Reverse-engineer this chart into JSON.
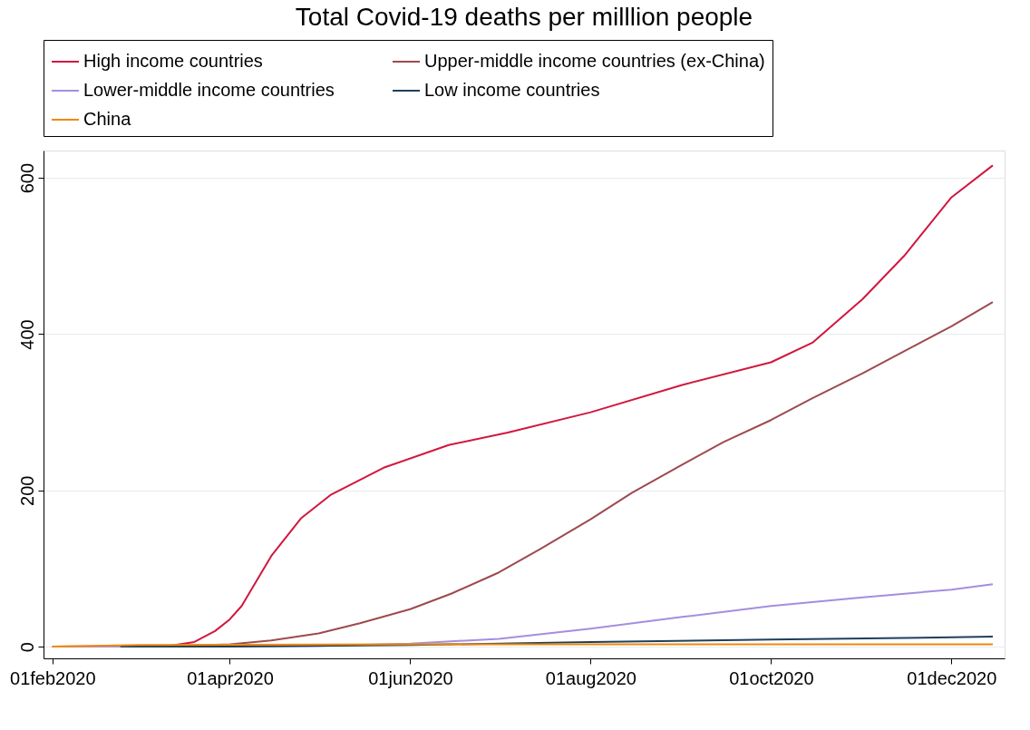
{
  "chart_data": {
    "type": "line",
    "title": "Total Covid-19 deaths per milllion people",
    "xlim": [
      "2020-01-29",
      "2020-12-19"
    ],
    "ylim": [
      -15,
      635
    ],
    "xticks": [
      {
        "value": "2020-02-01",
        "label": "01feb2020"
      },
      {
        "value": "2020-04-01",
        "label": "01apr2020"
      },
      {
        "value": "2020-06-01",
        "label": "01jun2020"
      },
      {
        "value": "2020-08-01",
        "label": "01aug2020"
      },
      {
        "value": "2020-10-01",
        "label": "01oct2020"
      },
      {
        "value": "2020-12-01",
        "label": "01dec2020"
      }
    ],
    "yticks": [
      0,
      200,
      400,
      600
    ],
    "grid": "y",
    "legend": "top",
    "marker": "none",
    "line_style": "solid",
    "series": [
      {
        "name": "High income countries",
        "color": "#d1173f",
        "x": [
          "2020-02-01",
          "2020-03-01",
          "2020-03-10",
          "2020-03-20",
          "2020-03-27",
          "2020-04-01",
          "2020-04-05",
          "2020-04-15",
          "2020-04-25",
          "2020-05-05",
          "2020-05-23",
          "2020-06-14",
          "2020-07-04",
          "2020-08-01",
          "2020-09-01",
          "2020-10-01",
          "2020-10-15",
          "2020-11-01",
          "2020-11-15",
          "2020-12-01",
          "2020-12-15"
        ],
        "values": [
          0,
          0,
          0,
          6,
          20,
          35,
          52,
          116,
          164,
          194,
          229,
          258,
          274,
          300,
          335,
          364,
          389,
          445,
          500,
          575,
          616
        ]
      },
      {
        "name": "Upper-middle income countries (ex-China)",
        "color": "#9e4a4f",
        "x": [
          "2020-02-01",
          "2020-03-15",
          "2020-04-01",
          "2020-04-15",
          "2020-05-01",
          "2020-05-15",
          "2020-06-01",
          "2020-06-15",
          "2020-07-01",
          "2020-07-15",
          "2020-08-01",
          "2020-08-15",
          "2020-09-01",
          "2020-09-15",
          "2020-10-01",
          "2020-10-15",
          "2020-11-01",
          "2020-11-15",
          "2020-12-01",
          "2020-12-15"
        ],
        "values": [
          0,
          1,
          3,
          8,
          17,
          30,
          48,
          68,
          95,
          125,
          163,
          197,
          233,
          262,
          290,
          318,
          350,
          378,
          410,
          441
        ]
      },
      {
        "name": "Lower-middle income countries",
        "color": "#a48ee0",
        "x": [
          "2020-02-01",
          "2020-04-01",
          "2020-05-01",
          "2020-06-01",
          "2020-07-01",
          "2020-08-01",
          "2020-09-01",
          "2020-10-01",
          "2020-11-01",
          "2020-12-01",
          "2020-12-15"
        ],
        "values": [
          0,
          0,
          1,
          4,
          10,
          23,
          38,
          52,
          63,
          73,
          80
        ]
      },
      {
        "name": "Low income countries",
        "color": "#1e3f5e",
        "x": [
          "2020-02-24",
          "2020-04-01",
          "2020-06-01",
          "2020-08-01",
          "2020-10-01",
          "2020-12-01",
          "2020-12-15"
        ],
        "values": [
          0,
          0,
          2,
          6,
          9,
          12,
          13
        ]
      },
      {
        "name": "China",
        "color": "#f0880a",
        "x": [
          "2020-02-01",
          "2020-02-15",
          "2020-03-01",
          "2020-06-01",
          "2020-09-01",
          "2020-12-15"
        ],
        "values": [
          0,
          1,
          2,
          3,
          3,
          3
        ]
      }
    ]
  }
}
